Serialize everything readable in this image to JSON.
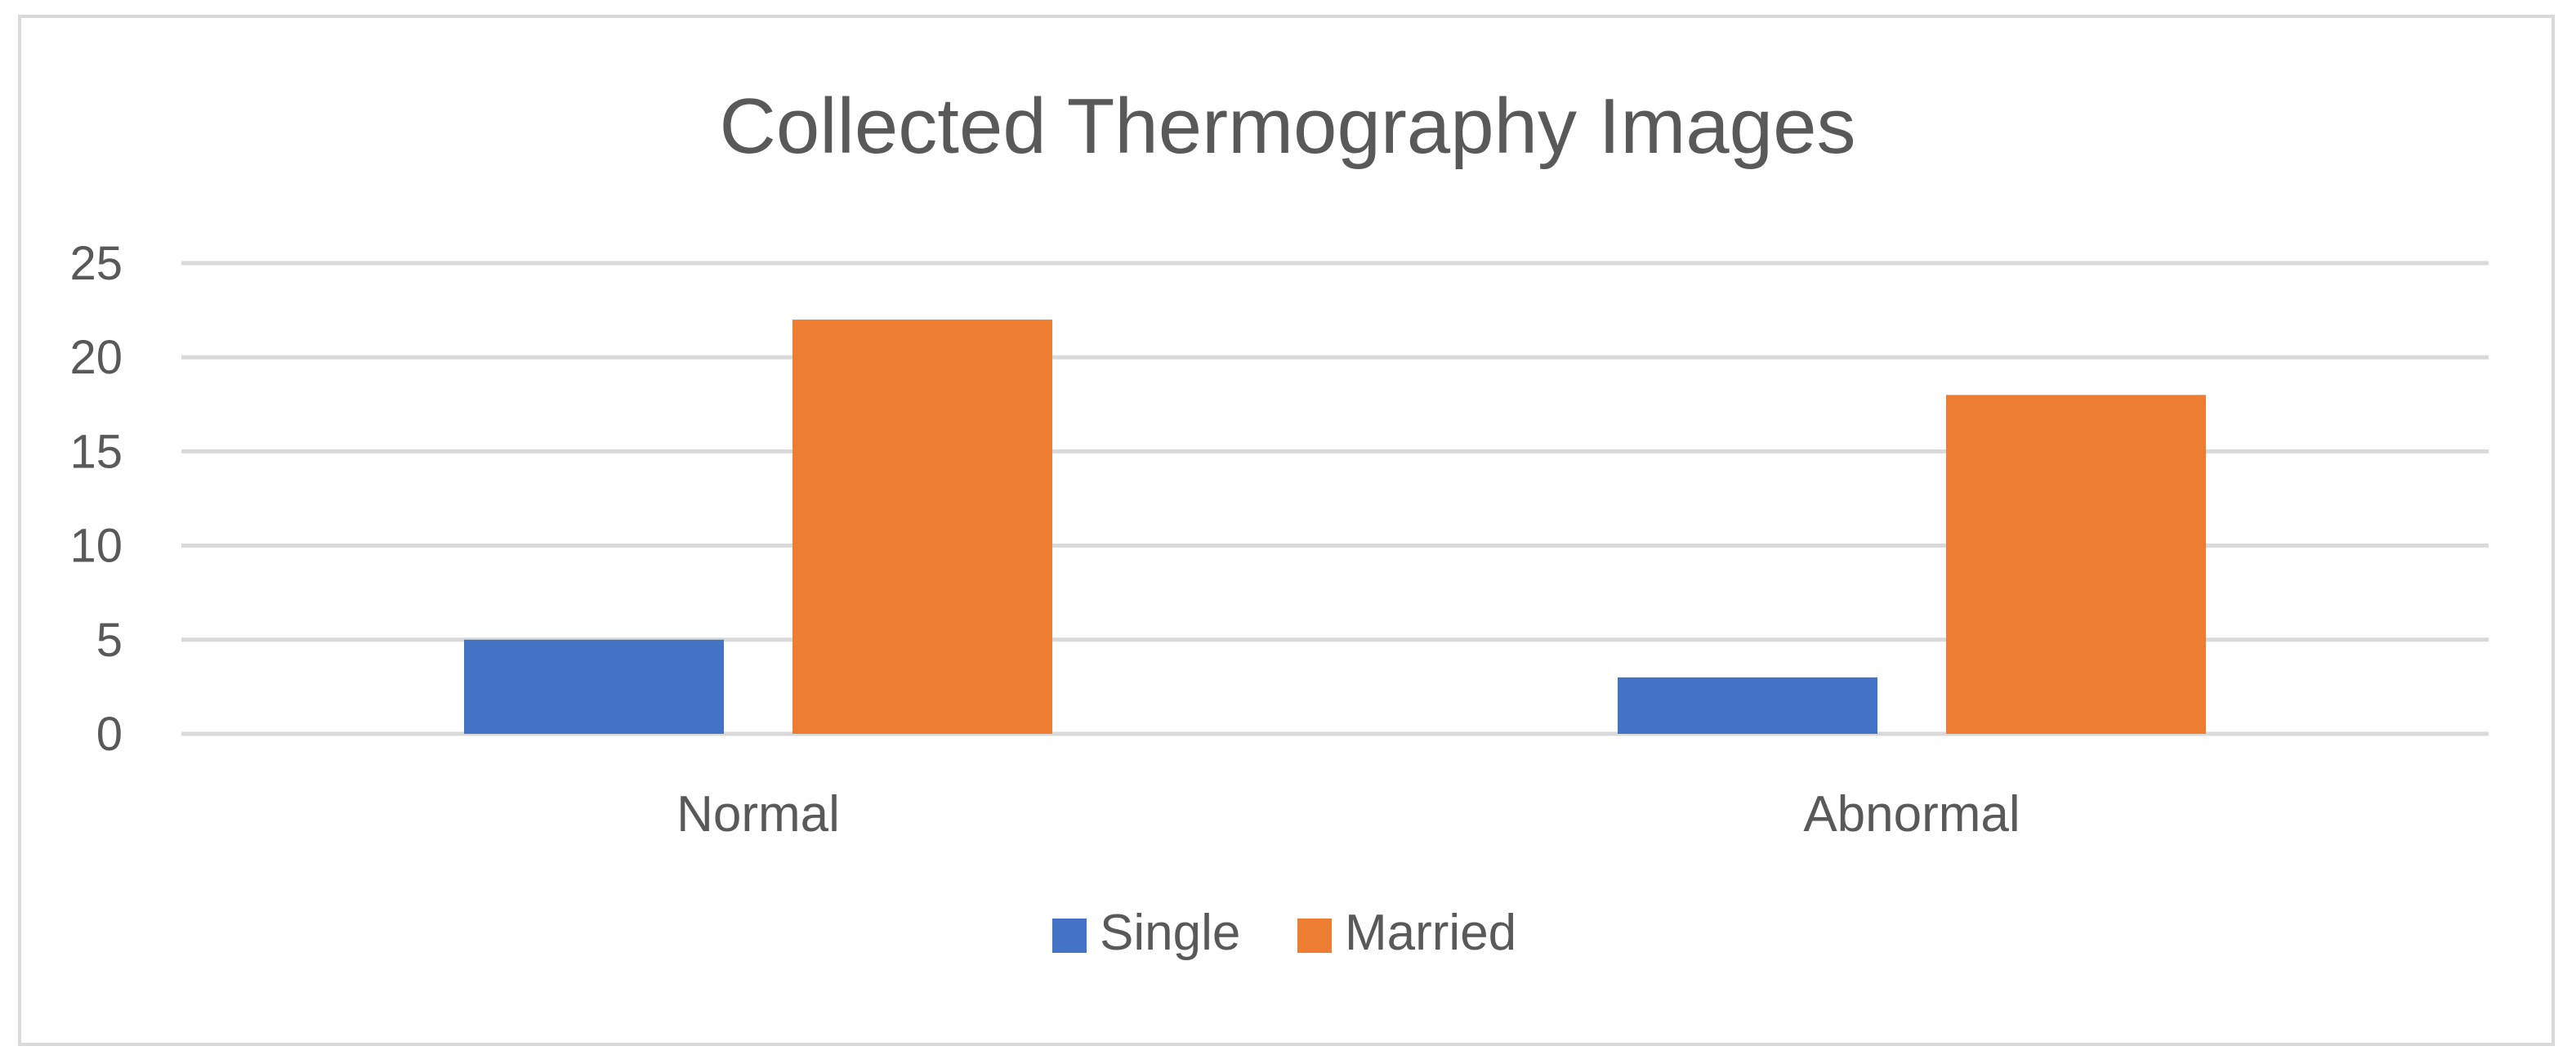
{
  "chart_data": {
    "type": "bar",
    "title": "Collected Thermography Images",
    "xlabel": "",
    "ylabel": "",
    "categories": [
      "Normal",
      "Abnormal"
    ],
    "series": [
      {
        "name": "Single",
        "values": [
          5,
          3
        ]
      },
      {
        "name": "Married",
        "values": [
          22,
          18
        ]
      }
    ],
    "ylim": [
      0,
      25
    ],
    "yticks": [
      "0",
      "5",
      "10",
      "15",
      "20",
      "25"
    ],
    "grid": true,
    "legend_position": "bottom"
  },
  "colors": {
    "Single": "#4472c4",
    "Married": "#ed7d31"
  }
}
